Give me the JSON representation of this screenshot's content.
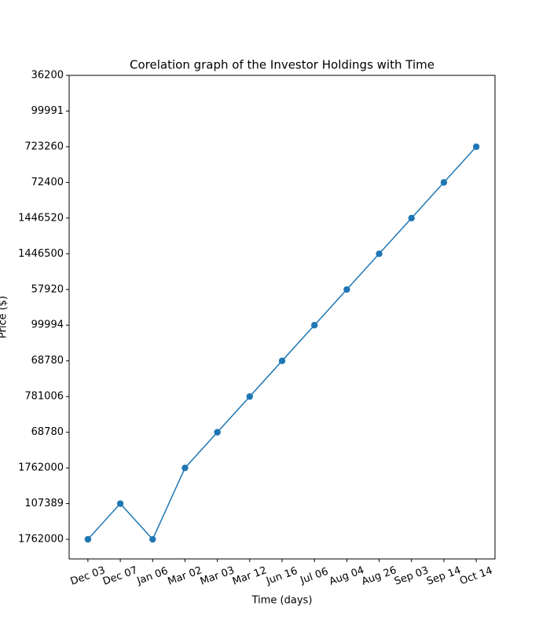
{
  "chart_data": {
    "type": "line",
    "title": "Corelation graph of the Investor Holdings with Time",
    "x_label": "Time (days)",
    "y_label": "Price ($)",
    "categories": [
      "Dec 03",
      "Dec 07",
      "Jan 06",
      "Mar 02",
      "Mar 03",
      "Mar 12",
      "Jun 16",
      "Jul 06",
      "Aug 04",
      "Aug 26",
      "Sep 03",
      "Sep 14",
      "Oct 14"
    ],
    "series": [
      {
        "color": "#1f77b4",
        "values": [
          0,
          1,
          0,
          2,
          3,
          4,
          5,
          6,
          7,
          8,
          9,
          10,
          11
        ]
      }
    ],
    "ylim": [
      -0.55,
      13
    ],
    "yticks": [
      {
        "value": 0,
        "label": "1762000"
      },
      {
        "value": 1,
        "label": "107389"
      },
      {
        "value": 2,
        "label": "1762000"
      },
      {
        "value": 3,
        "label": "68780"
      },
      {
        "value": 4,
        "label": "781006"
      },
      {
        "value": 5,
        "label": "68780"
      },
      {
        "value": 6,
        "label": "99994"
      },
      {
        "value": 7,
        "label": "57920"
      },
      {
        "value": 8,
        "label": "1446500"
      },
      {
        "value": 9,
        "label": "1446520"
      },
      {
        "value": 10,
        "label": "72400"
      },
      {
        "value": 11,
        "label": "723260"
      },
      {
        "value": 12,
        "label": "99991"
      },
      {
        "value": 13,
        "label": "36200"
      }
    ],
    "grid": false
  }
}
